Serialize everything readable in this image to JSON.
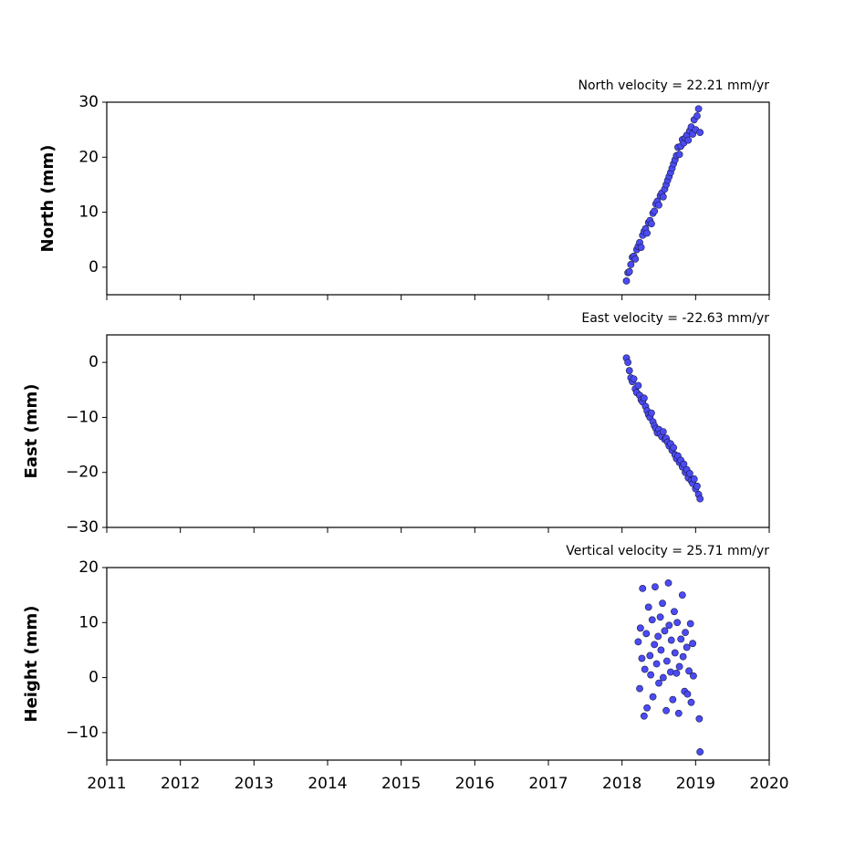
{
  "chart_data": [
    {
      "type": "scatter",
      "title": "North velocity = 22.21 mm/yr",
      "ylabel": "North (mm)",
      "color": "#4b4bf5",
      "edgecolor": "#1a1a40",
      "xlim": [
        2011,
        2020
      ],
      "xticks": [
        2011,
        2012,
        2013,
        2014,
        2015,
        2016,
        2017,
        2018,
        2019,
        2020
      ],
      "ylim": [
        -5,
        30
      ],
      "yticks": [
        0,
        10,
        20,
        30
      ],
      "x": [
        2018.06,
        2018.08,
        2018.1,
        2018.12,
        2018.14,
        2018.16,
        2018.18,
        2018.2,
        2018.22,
        2018.24,
        2018.26,
        2018.28,
        2018.3,
        2018.32,
        2018.34,
        2018.36,
        2018.38,
        2018.4,
        2018.42,
        2018.44,
        2018.46,
        2018.48,
        2018.5,
        2018.52,
        2018.54,
        2018.56,
        2018.58,
        2018.6,
        2018.62,
        2018.64,
        2018.66,
        2018.68,
        2018.7,
        2018.72,
        2018.74,
        2018.76,
        2018.78,
        2018.8,
        2018.82,
        2018.84,
        2018.86,
        2018.88,
        2018.9,
        2018.92,
        2018.94,
        2018.96,
        2018.98,
        2019.0,
        2019.02,
        2019.04,
        2019.06
      ],
      "values": [
        -2.5,
        -1.0,
        -0.8,
        0.5,
        1.8,
        2.0,
        1.5,
        3.2,
        3.8,
        4.5,
        3.6,
        5.8,
        6.5,
        7.0,
        6.2,
        8.1,
        8.5,
        7.9,
        9.8,
        10.2,
        11.5,
        12.0,
        11.3,
        13.0,
        13.5,
        12.8,
        14.2,
        15.0,
        15.8,
        16.5,
        17.2,
        18.0,
        18.8,
        19.5,
        20.3,
        21.8,
        20.5,
        22.0,
        23.2,
        22.6,
        23.5,
        24.0,
        23.1,
        24.8,
        25.5,
        24.2,
        26.8,
        25.0,
        27.5,
        28.8,
        24.5
      ]
    },
    {
      "type": "scatter",
      "title": "East velocity = -22.63 mm/yr",
      "ylabel": "East (mm)",
      "color": "#4b4bf5",
      "edgecolor": "#1a1a40",
      "xlim": [
        2011,
        2020
      ],
      "xticks": [
        2011,
        2012,
        2013,
        2014,
        2015,
        2016,
        2017,
        2018,
        2019,
        2020
      ],
      "ylim": [
        -30,
        5
      ],
      "yticks": [
        {
          "value": -30,
          "label": "−30"
        },
        {
          "value": -20,
          "label": "−20"
        },
        {
          "value": -10,
          "label": "−10"
        },
        0
      ],
      "x": [
        2018.06,
        2018.08,
        2018.1,
        2018.12,
        2018.14,
        2018.16,
        2018.18,
        2018.2,
        2018.22,
        2018.24,
        2018.26,
        2018.28,
        2018.3,
        2018.32,
        2018.34,
        2018.36,
        2018.38,
        2018.4,
        2018.42,
        2018.44,
        2018.46,
        2018.48,
        2018.5,
        2018.52,
        2018.54,
        2018.56,
        2018.58,
        2018.6,
        2018.62,
        2018.64,
        2018.66,
        2018.68,
        2018.7,
        2018.72,
        2018.74,
        2018.76,
        2018.78,
        2018.8,
        2018.82,
        2018.84,
        2018.86,
        2018.88,
        2018.9,
        2018.92,
        2018.94,
        2018.96,
        2018.98,
        2019.0,
        2019.02,
        2019.04,
        2019.06
      ],
      "values": [
        0.8,
        0,
        -1.5,
        -2.8,
        -3.5,
        -3.0,
        -4.8,
        -5.5,
        -4.2,
        -6.0,
        -6.8,
        -7.2,
        -6.5,
        -8.0,
        -8.8,
        -9.5,
        -10.0,
        -9.2,
        -10.8,
        -11.5,
        -12.0,
        -12.8,
        -12.2,
        -13.0,
        -13.5,
        -12.6,
        -14.0,
        -13.8,
        -14.5,
        -15.2,
        -14.8,
        -16.0,
        -15.5,
        -16.8,
        -17.5,
        -17.0,
        -18.2,
        -17.8,
        -19.0,
        -18.5,
        -20.0,
        -19.5,
        -21.0,
        -20.2,
        -21.5,
        -22.0,
        -21.2,
        -23.0,
        -22.5,
        -24.0,
        -24.8
      ]
    },
    {
      "type": "scatter",
      "title": "Vertical velocity = 25.71 mm/yr",
      "ylabel": "Height (mm)",
      "color": "#4b4bf5",
      "edgecolor": "#1a1a40",
      "xlim": [
        2011,
        2020
      ],
      "xticks": [
        2011,
        2012,
        2013,
        2014,
        2015,
        2016,
        2017,
        2018,
        2019,
        2020
      ],
      "ylim": [
        -15,
        20
      ],
      "yticks": [
        {
          "value": -10,
          "label": "−10"
        },
        0,
        10,
        20
      ],
      "x": [
        2018.22,
        2018.24,
        2018.25,
        2018.27,
        2018.28,
        2018.3,
        2018.31,
        2018.33,
        2018.34,
        2018.36,
        2018.38,
        2018.39,
        2018.41,
        2018.42,
        2018.44,
        2018.45,
        2018.47,
        2018.49,
        2018.5,
        2018.52,
        2018.53,
        2018.55,
        2018.56,
        2018.58,
        2018.6,
        2018.61,
        2018.63,
        2018.64,
        2018.66,
        2018.67,
        2018.69,
        2018.71,
        2018.72,
        2018.74,
        2018.75,
        2018.77,
        2018.78,
        2018.8,
        2018.82,
        2018.83,
        2018.85,
        2018.86,
        2018.88,
        2018.89,
        2018.91,
        2018.93,
        2018.94,
        2018.96,
        2018.97,
        2019.05,
        2019.06
      ],
      "values": [
        6.5,
        -2.0,
        9.0,
        3.5,
        16.2,
        -7.0,
        1.5,
        8.0,
        -5.5,
        12.8,
        4.0,
        0.5,
        10.5,
        -3.5,
        6.0,
        16.5,
        2.5,
        7.5,
        -1.0,
        11.0,
        5.0,
        13.5,
        0.0,
        8.5,
        -6.0,
        3.0,
        17.2,
        9.5,
        1.0,
        6.8,
        -4.0,
        12.0,
        4.5,
        0.8,
        10.0,
        -6.5,
        2.0,
        7.0,
        15.0,
        3.8,
        -2.5,
        8.2,
        5.5,
        -3.0,
        1.2,
        9.8,
        -4.5,
        6.2,
        0.3,
        -7.5,
        -13.5
      ]
    }
  ]
}
